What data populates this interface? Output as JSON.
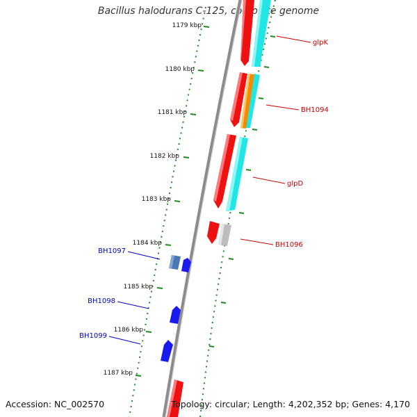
{
  "header": {
    "title": "Bacillus halodurans C-125, complete genome"
  },
  "footer": {
    "accession": "Accession: NC_002570",
    "topology": "Topology: circular; Length: 4,202,352 bp; Genes: 4,170"
  },
  "colors": {
    "backbone": "#8c8c8c",
    "tick": "#1e8a1e",
    "forward_label": "#cc0000",
    "reverse_label": "#0000bb",
    "cds": "#ee1111",
    "blast_hit": "#22e6e6",
    "orange_feature": "#f08c00",
    "grey_feature": "#bdbdbd",
    "reverse_cds": "#1a1aee",
    "reverse_steel": "#4a78b0"
  },
  "ticks": [
    "1179 kbp",
    "1180 kbp",
    "1181 kbp",
    "1182 kbp",
    "1183 kbp",
    "1184 kbp",
    "1185 kbp",
    "1186 kbp",
    "1187 kbp"
  ],
  "genes": {
    "forward": [
      "glpK",
      "BH1094",
      "glpD",
      "BH1096"
    ],
    "reverse": [
      "BH1097",
      "BH1098",
      "BH1099"
    ]
  }
}
